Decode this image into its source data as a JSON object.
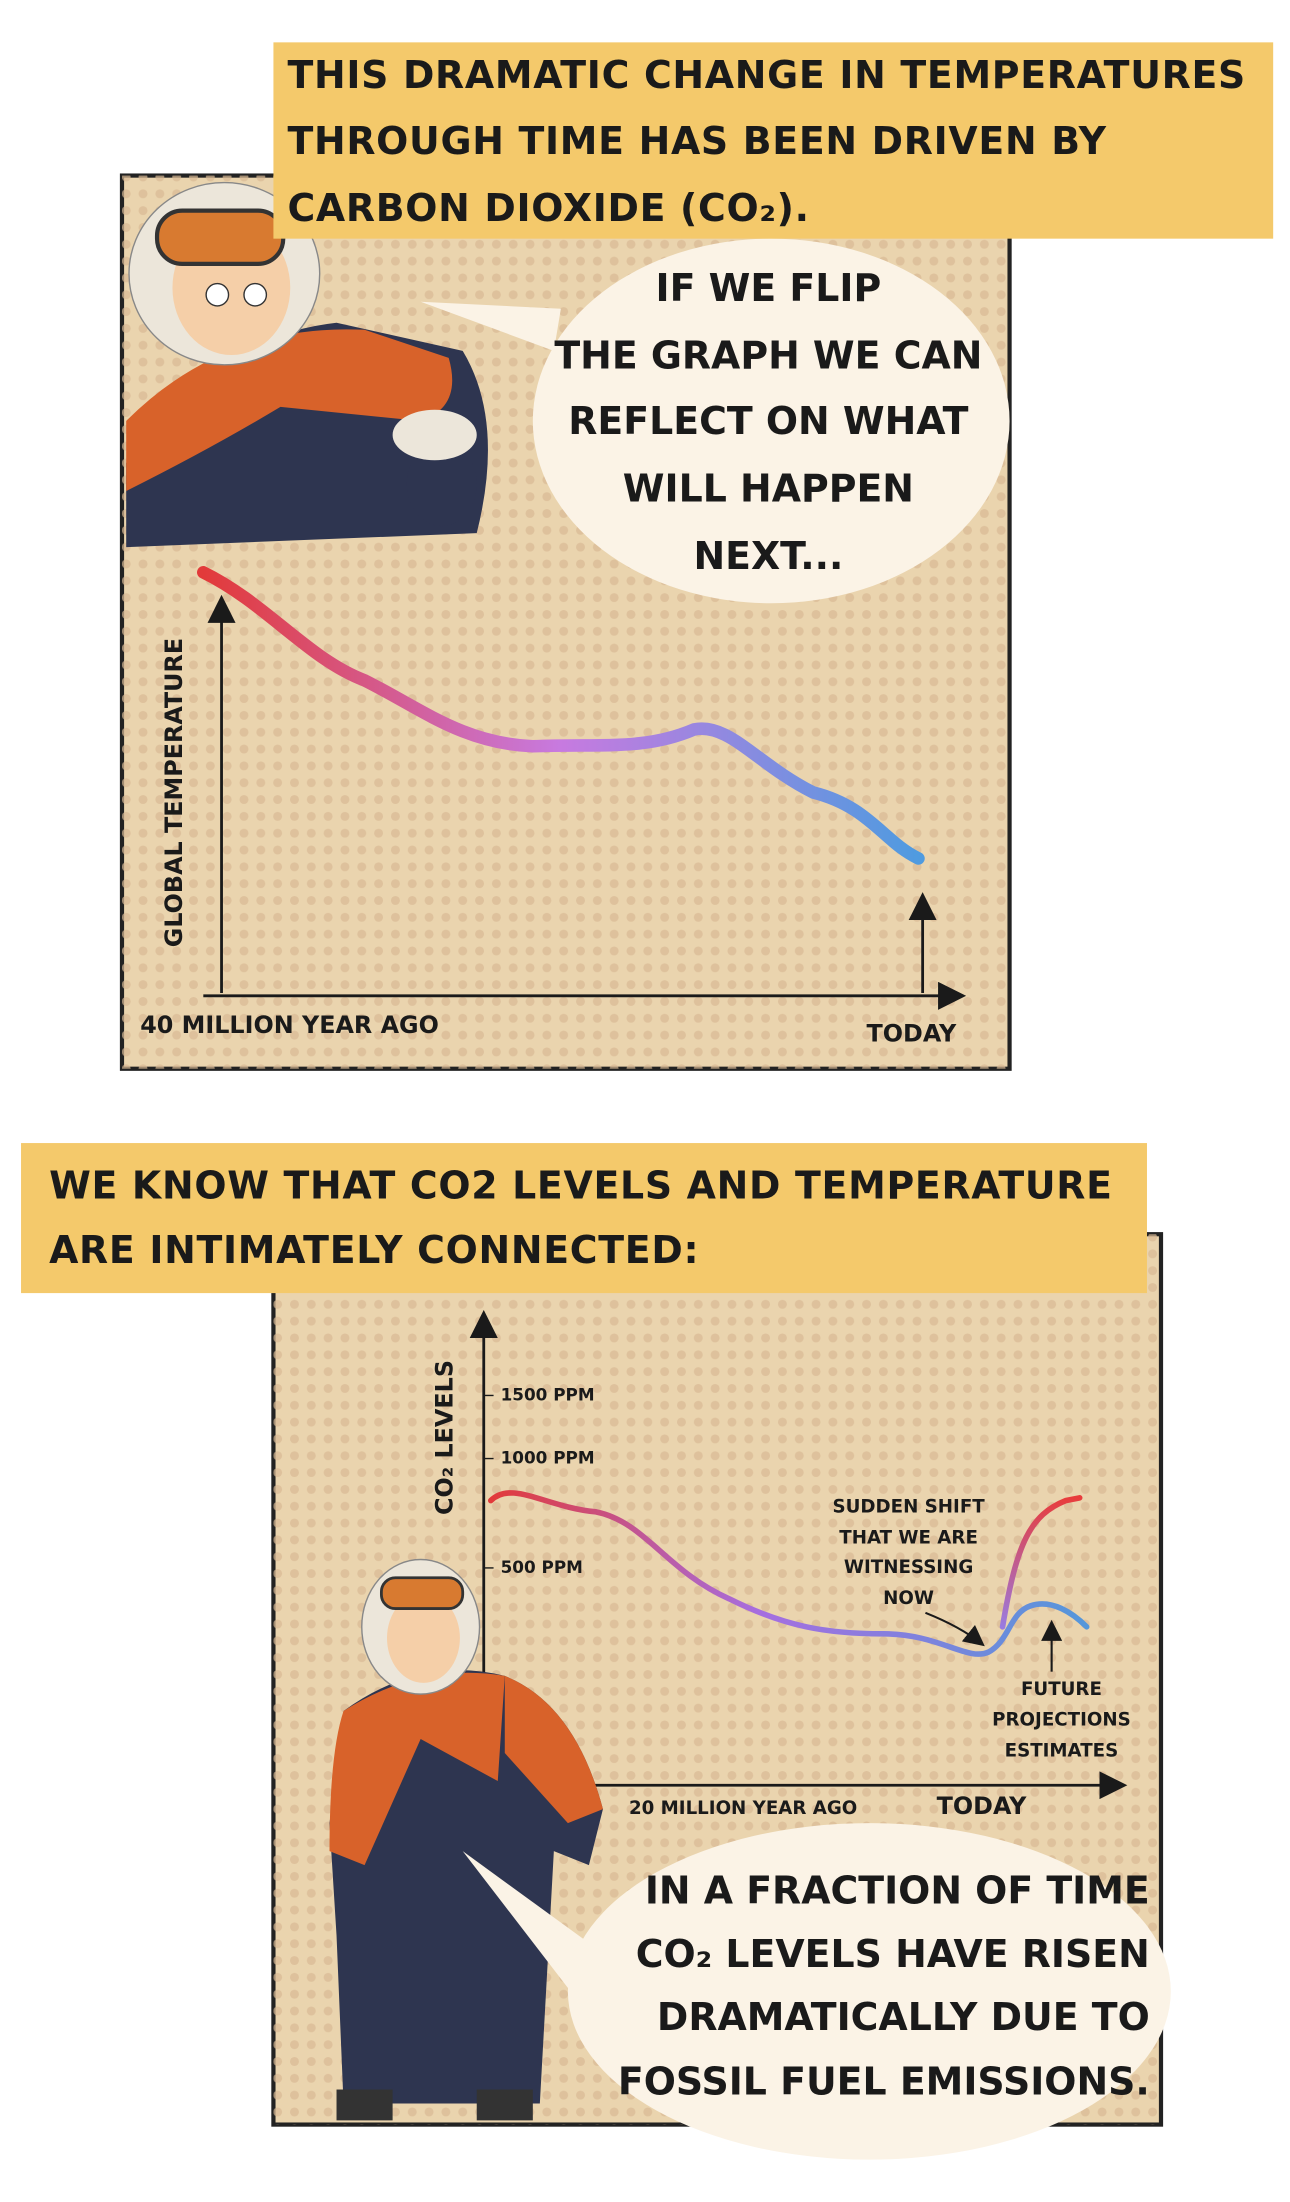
{
  "panel1": {
    "caption": [
      "THIS DRAMATIC CHANGE IN TEMPERATURES",
      "THROUGH TIME HAS BEEN DRIVEN BY",
      "CARBON DIOXIDE (CO₂)."
    ],
    "speech": [
      "IF WE FLIP",
      "THE GRAPH WE CAN",
      "REFLECT ON WHAT",
      "WILL HAPPEN",
      "NEXT..."
    ],
    "y_axis_label": "GLOBAL TEMPERATURE",
    "x_start_label": "40 MILLION YEAR AGO",
    "x_end_label": "TODAY"
  },
  "panel2": {
    "caption": [
      "WE KNOW THAT CO2 LEVELS AND TEMPERATURE",
      "ARE INTIMATELY CONNECTED:"
    ],
    "y_axis_label": "CO₂ LEVELS",
    "y_tick_labels": [
      "1500 PPM",
      "1000 PPM",
      "500 PPM"
    ],
    "annotation_now": [
      "SUDDEN SHIFT",
      "THAT WE ARE",
      "WITNESSING",
      "NOW"
    ],
    "annotation_future": [
      "FUTURE",
      "PROJECTIONS",
      "ESTIMATES"
    ],
    "x_start_label": "20 MILLION YEAR AGO",
    "x_end_label": "TODAY",
    "speech": [
      "IN A FRACTION OF TIME",
      "CO₂ LEVELS HAVE RISEN",
      "DRAMATICALLY DUE TO",
      "FOSSIL FUEL EMISSIONS."
    ]
  }
}
